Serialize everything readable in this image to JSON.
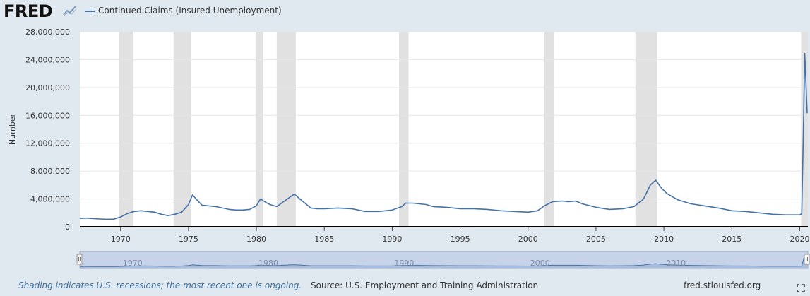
{
  "header": {
    "logo_text": "FRED",
    "logo_icon": "line-chart-icon",
    "series_legend": "Continued Claims (Insured Unemployment)"
  },
  "footer": {
    "note": "Shading indicates U.S. recessions; the most recent one is ongoing.",
    "source": "Source: U.S. Employment and Training Administration",
    "url": "fred.stlouisfed.org",
    "fullscreen_icon": "fullscreen-icon"
  },
  "colors": {
    "series": "#4572a7",
    "recession": "#e1e1e1",
    "background": "#e1e9f0",
    "plot": "#ffffff",
    "navigator": "#c6d3e8"
  },
  "chart_data": {
    "type": "line",
    "title": "",
    "xlabel": "",
    "ylabel": "Number",
    "xlim": [
      1967.0,
      2020.6
    ],
    "ylim": [
      0,
      28000000
    ],
    "y_ticks": [
      0,
      4000000,
      8000000,
      12000000,
      16000000,
      20000000,
      24000000,
      28000000
    ],
    "y_tick_labels": [
      "0",
      "4,000,000",
      "8,000,000",
      "12,000,000",
      "16,000,000",
      "20,000,000",
      "24,000,000",
      "28,000,000"
    ],
    "x_ticks": [
      1970,
      1975,
      1980,
      1985,
      1990,
      1995,
      2000,
      2005,
      2010,
      2015,
      2020
    ],
    "x_tick_labels": [
      "1970",
      "1975",
      "1980",
      "1985",
      "1990",
      "1995",
      "2000",
      "2005",
      "2010",
      "2015",
      "2020"
    ],
    "grid": "horizontal",
    "recessions": [
      [
        1969.9,
        1970.9
      ],
      [
        1973.9,
        1975.2
      ],
      [
        1980.0,
        1980.5
      ],
      [
        1981.5,
        1982.9
      ],
      [
        1990.5,
        1991.2
      ],
      [
        2001.2,
        2001.9
      ],
      [
        2007.9,
        2009.5
      ],
      [
        2020.1,
        2020.6
      ]
    ],
    "series": [
      {
        "values": [
          [
            1967.0,
            1200000
          ],
          [
            1967.5,
            1250000
          ],
          [
            1968.0,
            1180000
          ],
          [
            1968.5,
            1120000
          ],
          [
            1969.0,
            1080000
          ],
          [
            1969.5,
            1100000
          ],
          [
            1970.0,
            1400000
          ],
          [
            1970.5,
            1900000
          ],
          [
            1971.0,
            2200000
          ],
          [
            1971.5,
            2300000
          ],
          [
            1972.0,
            2200000
          ],
          [
            1972.5,
            2100000
          ],
          [
            1973.0,
            1800000
          ],
          [
            1973.5,
            1600000
          ],
          [
            1974.0,
            1800000
          ],
          [
            1974.5,
            2100000
          ],
          [
            1975.0,
            3200000
          ],
          [
            1975.3,
            4600000
          ],
          [
            1975.6,
            3900000
          ],
          [
            1976.0,
            3100000
          ],
          [
            1976.5,
            3000000
          ],
          [
            1977.0,
            2900000
          ],
          [
            1977.5,
            2700000
          ],
          [
            1978.0,
            2500000
          ],
          [
            1978.5,
            2400000
          ],
          [
            1979.0,
            2400000
          ],
          [
            1979.5,
            2500000
          ],
          [
            1980.0,
            3000000
          ],
          [
            1980.3,
            4000000
          ],
          [
            1980.7,
            3500000
          ],
          [
            1981.0,
            3200000
          ],
          [
            1981.5,
            2900000
          ],
          [
            1982.0,
            3600000
          ],
          [
            1982.5,
            4300000
          ],
          [
            1982.8,
            4700000
          ],
          [
            1983.2,
            4000000
          ],
          [
            1983.7,
            3200000
          ],
          [
            1984.0,
            2700000
          ],
          [
            1984.5,
            2600000
          ],
          [
            1985.0,
            2600000
          ],
          [
            1986.0,
            2700000
          ],
          [
            1987.0,
            2600000
          ],
          [
            1987.5,
            2400000
          ],
          [
            1988.0,
            2200000
          ],
          [
            1989.0,
            2200000
          ],
          [
            1990.0,
            2400000
          ],
          [
            1990.7,
            2900000
          ],
          [
            1991.0,
            3400000
          ],
          [
            1991.5,
            3400000
          ],
          [
            1992.0,
            3300000
          ],
          [
            1992.5,
            3200000
          ],
          [
            1993.0,
            2900000
          ],
          [
            1994.0,
            2800000
          ],
          [
            1995.0,
            2600000
          ],
          [
            1996.0,
            2600000
          ],
          [
            1997.0,
            2500000
          ],
          [
            1998.0,
            2300000
          ],
          [
            1999.0,
            2200000
          ],
          [
            2000.0,
            2100000
          ],
          [
            2000.7,
            2300000
          ],
          [
            2001.2,
            3000000
          ],
          [
            2001.8,
            3600000
          ],
          [
            2002.5,
            3700000
          ],
          [
            2003.0,
            3600000
          ],
          [
            2003.5,
            3700000
          ],
          [
            2004.0,
            3300000
          ],
          [
            2005.0,
            2800000
          ],
          [
            2006.0,
            2500000
          ],
          [
            2007.0,
            2600000
          ],
          [
            2007.8,
            2900000
          ],
          [
            2008.5,
            4000000
          ],
          [
            2009.0,
            6000000
          ],
          [
            2009.4,
            6700000
          ],
          [
            2009.8,
            5600000
          ],
          [
            2010.2,
            4800000
          ],
          [
            2011.0,
            3900000
          ],
          [
            2012.0,
            3300000
          ],
          [
            2013.0,
            3000000
          ],
          [
            2014.0,
            2700000
          ],
          [
            2015.0,
            2300000
          ],
          [
            2016.0,
            2200000
          ],
          [
            2017.0,
            2000000
          ],
          [
            2018.0,
            1800000
          ],
          [
            2019.0,
            1700000
          ],
          [
            2020.0,
            1700000
          ],
          [
            2020.15,
            1900000
          ],
          [
            2020.25,
            12000000
          ],
          [
            2020.37,
            24900000
          ],
          [
            2020.45,
            21000000
          ],
          [
            2020.55,
            16300000
          ]
        ]
      }
    ],
    "navigator": {
      "x_labels": [
        "1970",
        "1980",
        "1990",
        "2000",
        "2010"
      ],
      "x_values": [
        1970,
        1980,
        1990,
        2000,
        2010
      ]
    }
  }
}
